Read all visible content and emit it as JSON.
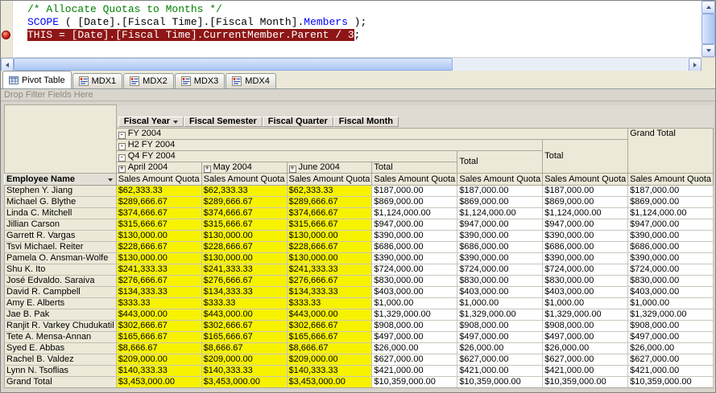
{
  "colors": {
    "comment_green": "#008000",
    "keyword_blue": "#0000ff",
    "debug_highlight_bg": "#8e1616",
    "quota_cell_yellow": "#f7f200",
    "breakpoint_red": "#cc2a1e"
  },
  "icons": {
    "collapse_glyph": "-",
    "expand_glyph": "+"
  },
  "code_editor": {
    "lines": [
      {
        "breakpoint": false,
        "segments": [
          {
            "type": "comment",
            "text": "/* Allocate Quotas to Months */"
          }
        ]
      },
      {
        "breakpoint": false,
        "segments": [
          {
            "type": "keyword",
            "text": "SCOPE"
          },
          {
            "type": "plain",
            "text": " ( [Date].[Fiscal Time].[Fiscal Month]."
          },
          {
            "type": "keyword",
            "text": "Members"
          },
          {
            "type": "plain",
            "text": " );"
          }
        ]
      },
      {
        "breakpoint": true,
        "segments": [
          {
            "type": "debug-highlight",
            "text": "THIS = [Date].[Fiscal Time].CurrentMember.Parent / 3"
          },
          {
            "type": "plain",
            "text": ";"
          }
        ]
      }
    ]
  },
  "tabs": [
    {
      "label": "Pivot Table",
      "icon": "pivot-table-icon",
      "active": true
    },
    {
      "label": "MDX1",
      "icon": "mdx-script-icon",
      "active": false
    },
    {
      "label": "MDX2",
      "icon": "mdx-script-icon",
      "active": false
    },
    {
      "label": "MDX3",
      "icon": "mdx-script-icon",
      "active": false
    },
    {
      "label": "MDX4",
      "icon": "mdx-script-icon",
      "active": false
    }
  ],
  "filter_bar": {
    "label": "Drop Filter Fields Here"
  },
  "pivot": {
    "column_fields": [
      {
        "label": "Fiscal Year",
        "dropdown": true
      },
      {
        "label": "Fiscal Semester",
        "dropdown": false
      },
      {
        "label": "Fiscal Quarter",
        "dropdown": false
      },
      {
        "label": "Fiscal Month",
        "dropdown": false
      }
    ],
    "row_field": {
      "label": "Employee Name",
      "dropdown": true
    },
    "header": {
      "fiscal_year": "FY 2004",
      "fiscal_semester": "H2 FY 2004",
      "fiscal_quarter": "Q4 FY 2004",
      "months": [
        "April 2004",
        "May 2004",
        "June 2004"
      ],
      "total_label": "Total",
      "grand_total_label": "Grand Total",
      "measure_label": "Sales Amount Quota"
    },
    "rows": [
      {
        "name": "Stephen Y. Jiang",
        "values": [
          "$62,333.33",
          "$62,333.33",
          "$62,333.33",
          "$187,000.00",
          "$187,000.00",
          "$187,000.00",
          "$187,000.00"
        ]
      },
      {
        "name": "Michael G. Blythe",
        "values": [
          "$289,666.67",
          "$289,666.67",
          "$289,666.67",
          "$869,000.00",
          "$869,000.00",
          "$869,000.00",
          "$869,000.00"
        ]
      },
      {
        "name": "Linda C. Mitchell",
        "values": [
          "$374,666.67",
          "$374,666.67",
          "$374,666.67",
          "$1,124,000.00",
          "$1,124,000.00",
          "$1,124,000.00",
          "$1,124,000.00"
        ]
      },
      {
        "name": "Jillian Carson",
        "values": [
          "$315,666.67",
          "$315,666.67",
          "$315,666.67",
          "$947,000.00",
          "$947,000.00",
          "$947,000.00",
          "$947,000.00"
        ]
      },
      {
        "name": "Garrett R. Vargas",
        "values": [
          "$130,000.00",
          "$130,000.00",
          "$130,000.00",
          "$390,000.00",
          "$390,000.00",
          "$390,000.00",
          "$390,000.00"
        ]
      },
      {
        "name": "Tsvi Michael. Reiter",
        "values": [
          "$228,666.67",
          "$228,666.67",
          "$228,666.67",
          "$686,000.00",
          "$686,000.00",
          "$686,000.00",
          "$686,000.00"
        ]
      },
      {
        "name": "Pamela O. Ansman-Wolfe",
        "values": [
          "$130,000.00",
          "$130,000.00",
          "$130,000.00",
          "$390,000.00",
          "$390,000.00",
          "$390,000.00",
          "$390,000.00"
        ]
      },
      {
        "name": "Shu K. Ito",
        "values": [
          "$241,333.33",
          "$241,333.33",
          "$241,333.33",
          "$724,000.00",
          "$724,000.00",
          "$724,000.00",
          "$724,000.00"
        ]
      },
      {
        "name": "José Edvaldo. Saraiva",
        "values": [
          "$276,666.67",
          "$276,666.67",
          "$276,666.67",
          "$830,000.00",
          "$830,000.00",
          "$830,000.00",
          "$830,000.00"
        ]
      },
      {
        "name": "David R. Campbell",
        "values": [
          "$134,333.33",
          "$134,333.33",
          "$134,333.33",
          "$403,000.00",
          "$403,000.00",
          "$403,000.00",
          "$403,000.00"
        ]
      },
      {
        "name": "Amy E. Alberts",
        "values": [
          "$333.33",
          "$333.33",
          "$333.33",
          "$1,000.00",
          "$1,000.00",
          "$1,000.00",
          "$1,000.00"
        ]
      },
      {
        "name": "Jae B. Pak",
        "values": [
          "$443,000.00",
          "$443,000.00",
          "$443,000.00",
          "$1,329,000.00",
          "$1,329,000.00",
          "$1,329,000.00",
          "$1,329,000.00"
        ]
      },
      {
        "name": "Ranjit R. Varkey Chudukatil",
        "values": [
          "$302,666.67",
          "$302,666.67",
          "$302,666.67",
          "$908,000.00",
          "$908,000.00",
          "$908,000.00",
          "$908,000.00"
        ]
      },
      {
        "name": "Tete A. Mensa-Annan",
        "values": [
          "$165,666.67",
          "$165,666.67",
          "$165,666.67",
          "$497,000.00",
          "$497,000.00",
          "$497,000.00",
          "$497,000.00"
        ]
      },
      {
        "name": "Syed E. Abbas",
        "values": [
          "$8,666.67",
          "$8,666.67",
          "$8,666.67",
          "$26,000.00",
          "$26,000.00",
          "$26,000.00",
          "$26,000.00"
        ]
      },
      {
        "name": "Rachel B. Valdez",
        "values": [
          "$209,000.00",
          "$209,000.00",
          "$209,000.00",
          "$627,000.00",
          "$627,000.00",
          "$627,000.00",
          "$627,000.00"
        ]
      },
      {
        "name": "Lynn N. Tsoflias",
        "values": [
          "$140,333.33",
          "$140,333.33",
          "$140,333.33",
          "$421,000.00",
          "$421,000.00",
          "$421,000.00",
          "$421,000.00"
        ]
      },
      {
        "name": "Grand Total",
        "values": [
          "$3,453,000.00",
          "$3,453,000.00",
          "$3,453,000.00",
          "$10,359,000.00",
          "$10,359,000.00",
          "$10,359,000.00",
          "$10,359,000.00"
        ],
        "is_total": true
      }
    ]
  }
}
